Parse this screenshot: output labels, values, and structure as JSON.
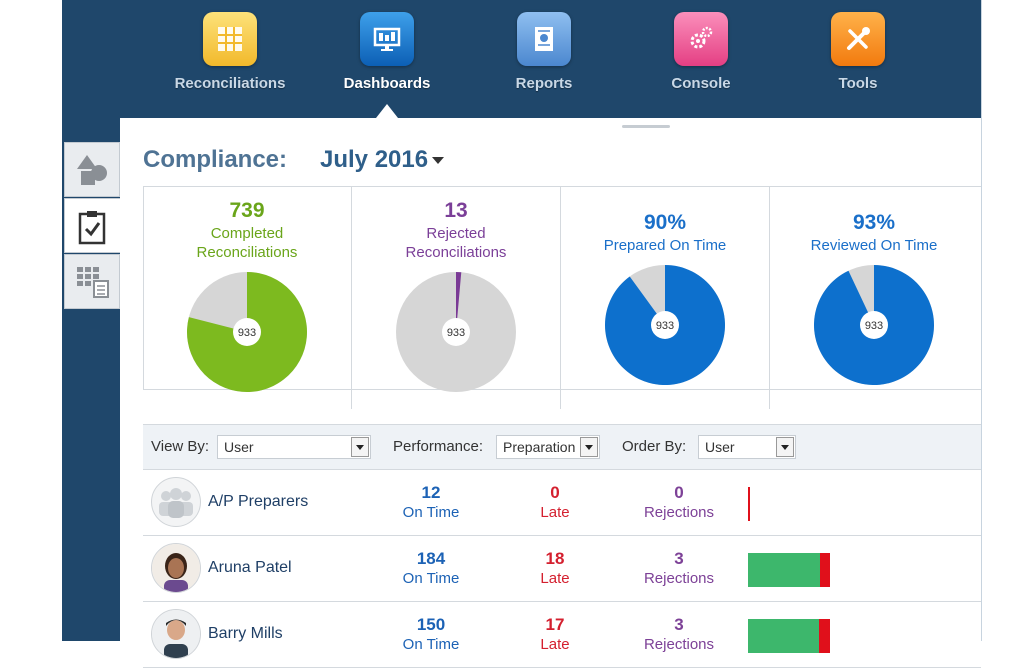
{
  "nav": [
    {
      "label": "Reconciliations",
      "icon": "grid-icon",
      "active": false
    },
    {
      "label": "Dashboards",
      "icon": "monitor-icon",
      "active": true
    },
    {
      "label": "Reports",
      "icon": "report-icon",
      "active": false
    },
    {
      "label": "Console",
      "icon": "gears-icon",
      "active": false
    },
    {
      "label": "Tools",
      "icon": "tools-icon",
      "active": false
    }
  ],
  "side_tabs": [
    "shapes-icon",
    "clipboard-check-icon",
    "table-grid-icon"
  ],
  "header": {
    "label": "Compliance:",
    "period": "July 2016"
  },
  "tiles": [
    {
      "value": "739",
      "label_line1": "Completed",
      "label_line2": "Reconciliations",
      "center": "933",
      "fraction": 0.79,
      "color": "#7dba1f",
      "text_color": "#6aa51a"
    },
    {
      "value": "13",
      "label_line1": "Rejected",
      "label_line2": "Reconciliations",
      "center": "933",
      "fraction": 0.014,
      "color": "#7a3a95",
      "text_color": "#7b3f98"
    },
    {
      "value": "90%",
      "label_line1": "Prepared On Time",
      "label_line2": "",
      "center": "933",
      "fraction": 0.9,
      "color": "#0d70cd",
      "text_color": "#1a6fc9"
    },
    {
      "value": "93%",
      "label_line1": "Reviewed On Time",
      "label_line2": "",
      "center": "933",
      "fraction": 0.93,
      "color": "#0d70cd",
      "text_color": "#1a6fc9"
    }
  ],
  "filters": {
    "view_by_label": "View By:",
    "view_by_value": "User",
    "performance_label": "Performance:",
    "performance_value": "Preparation",
    "order_by_label": "Order By:",
    "order_by_value": "User"
  },
  "metric_labels": {
    "on_time": "On Time",
    "late": "Late",
    "rejections": "Rejections"
  },
  "rows": [
    {
      "name": "A/P Preparers",
      "on_time": "12",
      "late": "0",
      "rejections": "0",
      "bar": {
        "green": 0,
        "red": 0
      },
      "avatar": "group"
    },
    {
      "name": "Aruna Patel",
      "on_time": "184",
      "late": "18",
      "rejections": "3",
      "bar": {
        "green": 0.875,
        "red": 0.125
      },
      "avatar": "person"
    },
    {
      "name": "Barry Mills",
      "on_time": "150",
      "late": "17",
      "rejections": "3",
      "bar": {
        "green": 0.86,
        "red": 0.14
      },
      "avatar": "person"
    }
  ],
  "colors": {
    "on_time": "#1c62b5",
    "late": "#d4202f",
    "rejections": "#7d4197",
    "pie_grey": "#d6d6d6",
    "bar_green": "#3db76c",
    "bar_red": "#e0101b"
  }
}
